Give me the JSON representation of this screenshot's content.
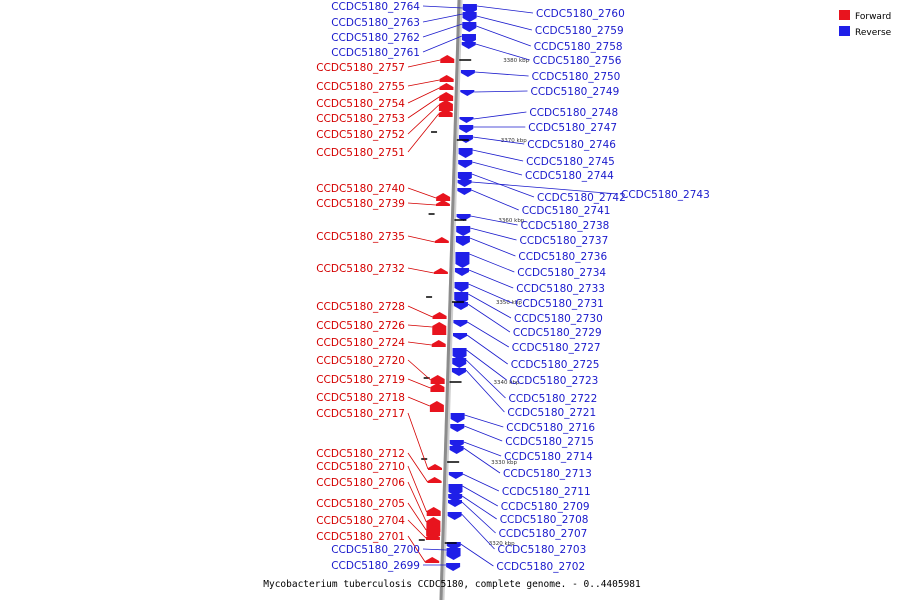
{
  "caption": "Mycobacterium tuberculosis CCDC5180, complete genome. - 0..4405981",
  "legend": [
    {
      "label": "Forward",
      "color": "#e8141e"
    },
    {
      "label": "Reverse",
      "color": "#1f1fe8"
    }
  ],
  "colors": {
    "backbone": "#8c8c8c",
    "forward": "#e8141e",
    "reverse": "#1f1fe8",
    "forward_text": "#d40000",
    "reverse_text": "#1a1acc"
  },
  "ticks": [
    "3380 kbp",
    "3370 kbp",
    "3360 kbp",
    "3350 kbp",
    "3340 kbp",
    "3330 kbp",
    "3320 kbp"
  ],
  "forward_labels": [
    "CCDC5180_2757",
    "CCDC5180_2755",
    "CCDC5180_2754",
    "CCDC5180_2753",
    "CCDC5180_2752",
    "CCDC5180_2751",
    "CCDC5180_2740",
    "CCDC5180_2739",
    "CCDC5180_2735",
    "CCDC5180_2732",
    "CCDC5180_2728",
    "CCDC5180_2726",
    "CCDC5180_2724",
    "CCDC5180_2720",
    "CCDC5180_2719",
    "CCDC5180_2718",
    "CCDC5180_2717",
    "CCDC5180_2712",
    "CCDC5180_2710",
    "CCDC5180_2706",
    "CCDC5180_2705",
    "CCDC5180_2704",
    "CCDC5180_2701"
  ],
  "reverse_left_labels": [
    "CCDC5180_2764",
    "CCDC5180_2763",
    "CCDC5180_2762",
    "CCDC5180_2761",
    "CCDC5180_2700",
    "CCDC5180_2699"
  ],
  "reverse_right_labels": [
    "CCDC5180_2760",
    "CCDC5180_2759",
    "CCDC5180_2758",
    "CCDC5180_2756",
    "CCDC5180_2750",
    "CCDC5180_2749",
    "CCDC5180_2748",
    "CCDC5180_2747",
    "CCDC5180_2746",
    "CCDC5180_2745",
    "CCDC5180_2744",
    "CCDC5180_2742",
    "CCDC5180_2743",
    "CCDC5180_2741",
    "CCDC5180_2738",
    "CCDC5180_2737",
    "CCDC5180_2736",
    "CCDC5180_2734",
    "CCDC5180_2733",
    "CCDC5180_2731",
    "CCDC5180_2730",
    "CCDC5180_2729",
    "CCDC5180_2727",
    "CCDC5180_2725",
    "CCDC5180_2723",
    "CCDC5180_2722",
    "CCDC5180_2721",
    "CCDC5180_2716",
    "CCDC5180_2715",
    "CCDC5180_2714",
    "CCDC5180_2713",
    "CCDC5180_2711",
    "CCDC5180_2709",
    "CCDC5180_2708",
    "CCDC5180_2707",
    "CCDC5180_2703",
    "CCDC5180_2702"
  ]
}
